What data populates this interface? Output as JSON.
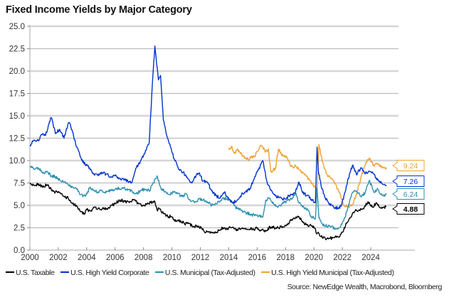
{
  "chart_data": {
    "type": "line",
    "title": "Fixed Income Yields by Major Category",
    "xlabel": "",
    "ylabel": "",
    "xlim": [
      2000,
      2025.6
    ],
    "ylim": [
      0,
      25
    ],
    "grid": true,
    "legend_position": "bottom",
    "x_ticks": [
      "2000",
      "2002",
      "2004",
      "2006",
      "2008",
      "2010",
      "2012",
      "2014",
      "2016",
      "2018",
      "2020",
      "2022",
      "2024"
    ],
    "y_ticks": [
      "0.0",
      "2.5",
      "5.0",
      "7.5",
      "10.0",
      "12.5",
      "15.0",
      "17.5",
      "20.0",
      "22.5",
      "25.0"
    ],
    "source": "Source: NewEdge Wealth, Macrobond, Bloomberg",
    "series": [
      {
        "name": "U.S. Taxable",
        "color": "#000000",
        "last_value": "4.88",
        "x": [
          2000.0,
          2000.3,
          2000.6,
          2000.9,
          2001.2,
          2001.5,
          2001.8,
          2002.1,
          2002.4,
          2002.7,
          2003.0,
          2003.3,
          2003.6,
          2003.8,
          2004.0,
          2004.3,
          2004.6,
          2004.9,
          2005.2,
          2005.5,
          2005.8,
          2006.1,
          2006.4,
          2006.7,
          2007.0,
          2007.3,
          2007.6,
          2007.9,
          2008.2,
          2008.5,
          2008.8,
          2008.95,
          2009.1,
          2009.4,
          2009.7,
          2010.0,
          2010.3,
          2010.6,
          2010.9,
          2011.2,
          2011.5,
          2011.8,
          2012.1,
          2012.4,
          2012.7,
          2013.0,
          2013.3,
          2013.6,
          2013.9,
          2014.2,
          2014.5,
          2014.8,
          2015.1,
          2015.4,
          2015.7,
          2016.0,
          2016.3,
          2016.6,
          2016.9,
          2017.2,
          2017.5,
          2017.8,
          2018.1,
          2018.4,
          2018.7,
          2018.9,
          2019.2,
          2019.5,
          2019.8,
          2020.1,
          2020.2,
          2020.3,
          2020.5,
          2020.8,
          2021.1,
          2021.4,
          2021.7,
          2022.0,
          2022.3,
          2022.6,
          2022.9,
          2023.2,
          2023.5,
          2023.8,
          2024.1,
          2024.4,
          2024.7,
          2024.9,
          2025.1
        ],
        "y": [
          7.4,
          7.2,
          7.4,
          7.0,
          7.3,
          6.8,
          6.5,
          6.4,
          6.0,
          5.8,
          5.2,
          4.9,
          4.3,
          4.0,
          4.5,
          4.4,
          4.8,
          4.6,
          4.6,
          4.7,
          5.0,
          5.3,
          5.6,
          5.4,
          5.3,
          5.6,
          5.3,
          4.9,
          5.1,
          5.3,
          5.4,
          4.5,
          4.6,
          4.1,
          3.8,
          3.7,
          3.2,
          3.3,
          2.9,
          3.0,
          2.6,
          2.7,
          2.4,
          2.0,
          1.9,
          1.9,
          2.2,
          2.5,
          2.4,
          2.5,
          2.3,
          2.3,
          2.4,
          2.3,
          2.4,
          2.4,
          2.2,
          2.1,
          2.6,
          2.5,
          2.5,
          2.6,
          2.9,
          3.3,
          3.6,
          3.7,
          3.2,
          2.8,
          2.7,
          2.4,
          1.8,
          2.0,
          1.5,
          1.3,
          1.3,
          1.4,
          1.5,
          2.0,
          3.0,
          3.7,
          4.4,
          4.5,
          4.6,
          5.4,
          4.8,
          5.3,
          4.7,
          4.8,
          4.88
        ]
      },
      {
        "name": "U.S. High Yield Corporate",
        "color": "#0033cc",
        "last_value": "7.26",
        "x": [
          2000.0,
          2000.3,
          2000.6,
          2000.9,
          2001.1,
          2001.3,
          2001.5,
          2001.8,
          2002.1,
          2002.4,
          2002.7,
          2002.85,
          2003.0,
          2003.3,
          2003.6,
          2003.9,
          2004.2,
          2004.5,
          2004.8,
          2005.1,
          2005.4,
          2005.7,
          2006.0,
          2006.3,
          2006.6,
          2006.9,
          2007.2,
          2007.5,
          2007.8,
          2008.1,
          2008.4,
          2008.6,
          2008.8,
          2008.95,
          2009.05,
          2009.2,
          2009.4,
          2009.6,
          2009.9,
          2010.2,
          2010.5,
          2010.8,
          2011.1,
          2011.4,
          2011.7,
          2011.9,
          2012.2,
          2012.5,
          2012.8,
          2013.1,
          2013.4,
          2013.7,
          2014.0,
          2014.3,
          2014.6,
          2014.9,
          2015.2,
          2015.5,
          2015.8,
          2016.1,
          2016.4,
          2016.7,
          2016.9,
          2017.2,
          2017.5,
          2017.8,
          2018.1,
          2018.4,
          2018.7,
          2018.95,
          2019.2,
          2019.5,
          2019.8,
          2020.1,
          2020.22,
          2020.3,
          2020.5,
          2020.8,
          2021.1,
          2021.4,
          2021.7,
          2021.9,
          2022.2,
          2022.5,
          2022.75,
          2023.0,
          2023.3,
          2023.6,
          2023.9,
          2024.2,
          2024.5,
          2024.8,
          2025.1
        ],
        "y": [
          11.7,
          12.3,
          12.2,
          13.0,
          12.8,
          13.9,
          14.8,
          13.0,
          13.5,
          12.5,
          14.2,
          14.0,
          13.2,
          11.5,
          10.3,
          9.5,
          9.2,
          8.5,
          8.3,
          8.6,
          8.5,
          8.2,
          8.3,
          8.0,
          7.9,
          7.7,
          7.6,
          9.2,
          10.0,
          10.8,
          12.0,
          18.0,
          22.8,
          20.5,
          19.0,
          19.5,
          14.5,
          13.0,
          11.5,
          10.0,
          9.0,
          8.7,
          8.0,
          7.5,
          8.3,
          8.6,
          7.7,
          7.6,
          6.6,
          6.1,
          5.8,
          6.5,
          5.7,
          5.3,
          5.6,
          6.2,
          6.5,
          6.9,
          8.0,
          9.0,
          10.0,
          7.6,
          6.9,
          6.2,
          5.9,
          5.6,
          5.9,
          6.2,
          6.5,
          7.6,
          6.4,
          6.1,
          5.7,
          5.3,
          11.5,
          9.0,
          7.2,
          5.8,
          5.2,
          4.8,
          4.7,
          4.9,
          6.5,
          8.5,
          9.5,
          8.4,
          9.2,
          8.5,
          8.8,
          8.5,
          7.8,
          7.4,
          7.26
        ]
      },
      {
        "name": "U.S. Municipal (Tax-Adjusted)",
        "color": "#2f8fb0",
        "last_value": "6.24",
        "x": [
          2000.0,
          2000.3,
          2000.6,
          2000.9,
          2001.2,
          2001.5,
          2001.8,
          2002.1,
          2002.4,
          2002.7,
          2003.0,
          2003.3,
          2003.6,
          2003.9,
          2004.2,
          2004.5,
          2004.8,
          2005.1,
          2005.4,
          2005.7,
          2006.0,
          2006.3,
          2006.6,
          2006.9,
          2007.2,
          2007.5,
          2007.8,
          2008.1,
          2008.4,
          2008.7,
          2008.95,
          2009.2,
          2009.5,
          2009.8,
          2010.1,
          2010.4,
          2010.7,
          2011.0,
          2011.3,
          2011.6,
          2011.9,
          2012.2,
          2012.5,
          2012.8,
          2013.1,
          2013.4,
          2013.7,
          2014.0,
          2014.3,
          2014.6,
          2014.9,
          2015.2,
          2015.5,
          2015.8,
          2016.1,
          2016.4,
          2016.6,
          2016.9,
          2017.2,
          2017.5,
          2017.8,
          2018.1,
          2018.4,
          2018.7,
          2018.9,
          2019.2,
          2019.5,
          2019.8,
          2020.1,
          2020.22,
          2020.35,
          2020.6,
          2020.9,
          2021.2,
          2021.5,
          2021.8,
          2022.1,
          2022.4,
          2022.7,
          2023.0,
          2023.3,
          2023.6,
          2023.9,
          2024.2,
          2024.5,
          2024.8,
          2025.1
        ],
        "y": [
          9.4,
          9.0,
          9.2,
          8.6,
          8.8,
          8.3,
          8.2,
          7.8,
          7.6,
          7.3,
          7.0,
          6.8,
          6.2,
          6.0,
          6.9,
          6.7,
          6.5,
          6.6,
          6.5,
          6.7,
          6.8,
          6.9,
          6.9,
          6.7,
          6.6,
          6.3,
          6.7,
          6.8,
          6.6,
          7.5,
          8.3,
          7.0,
          6.5,
          6.2,
          6.5,
          6.3,
          6.0,
          6.3,
          5.5,
          5.3,
          5.7,
          5.6,
          5.4,
          5.0,
          5.2,
          5.5,
          5.8,
          5.6,
          5.2,
          4.6,
          4.4,
          4.2,
          4.0,
          3.9,
          3.8,
          3.7,
          5.6,
          5.8,
          5.1,
          4.9,
          5.2,
          5.5,
          5.7,
          6.4,
          5.4,
          4.8,
          4.6,
          3.8,
          3.5,
          6.9,
          3.6,
          2.9,
          2.7,
          2.6,
          2.4,
          2.5,
          3.3,
          4.8,
          6.4,
          6.6,
          6.0,
          6.4,
          7.8,
          6.5,
          6.8,
          6.1,
          6.24
        ]
      },
      {
        "name": "U.S. High Yield Municipal (Tax-Adjusted)",
        "color": "#f0a030",
        "last_value": "9.24",
        "x": [
          2014.0,
          2014.2,
          2014.4,
          2014.6,
          2014.8,
          2015.0,
          2015.2,
          2015.4,
          2015.6,
          2015.8,
          2016.0,
          2016.2,
          2016.4,
          2016.6,
          2016.8,
          2016.95,
          2017.1,
          2017.3,
          2017.5,
          2017.7,
          2017.9,
          2018.1,
          2018.3,
          2018.5,
          2018.7,
          2018.9,
          2019.1,
          2019.3,
          2019.5,
          2019.7,
          2019.9,
          2020.1,
          2020.22,
          2020.35,
          2020.6,
          2020.9,
          2021.2,
          2021.5,
          2021.8,
          2022.1,
          2022.4,
          2022.7,
          2023.0,
          2023.3,
          2023.6,
          2023.9,
          2024.2,
          2024.5,
          2024.8,
          2025.1
        ],
        "y": [
          11.2,
          11.6,
          10.8,
          11.2,
          10.9,
          10.5,
          10.3,
          10.1,
          10.5,
          10.4,
          11.0,
          11.6,
          11.5,
          11.0,
          11.3,
          8.8,
          8.9,
          9.1,
          11.3,
          10.7,
          10.5,
          10.3,
          9.6,
          9.3,
          9.4,
          9.1,
          8.7,
          8.5,
          8.2,
          7.8,
          7.4,
          7.0,
          6.5,
          11.8,
          9.8,
          8.5,
          8.0,
          7.4,
          6.4,
          5.0,
          4.8,
          5.1,
          6.2,
          8.1,
          9.5,
          10.3,
          9.5,
          9.6,
          9.2,
          9.24
        ]
      }
    ]
  }
}
